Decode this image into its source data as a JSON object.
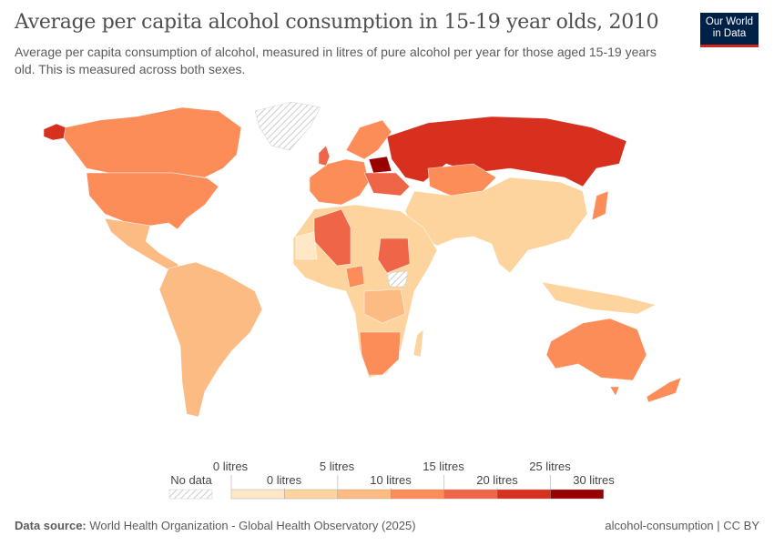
{
  "header": {
    "title": "Average per capita alcohol consumption in 15-19 year olds, 2010",
    "subtitle": "Average per capita consumption of alcohol, measured in litres of pure alcohol per year for those aged 15-19 years old. This is measured across both sexes.",
    "logo": "Our World in Data"
  },
  "legend": {
    "no_data_label": "No data",
    "bins": [
      {
        "label_top": "0 litres",
        "label_bottom": "0 litres",
        "color": "#fee8c8"
      },
      {
        "label_top": "5 litres",
        "label_bottom": "",
        "color": "#fdd49e"
      },
      {
        "label_top": "",
        "label_bottom": "10 litres",
        "color": "#fdbb84"
      },
      {
        "label_top": "15 litres",
        "label_bottom": "",
        "color": "#fc8d59"
      },
      {
        "label_top": "",
        "label_bottom": "20 litres",
        "color": "#ef6548"
      },
      {
        "label_top": "25 litres",
        "label_bottom": "",
        "color": "#d7301f"
      },
      {
        "label_top": "",
        "label_bottom": "30 litres",
        "color": "#990000"
      }
    ],
    "ticks_top": [
      "0 litres",
      "5 litres",
      "15 litres",
      "25 litres"
    ],
    "ticks_bottom": [
      "0 litres",
      "10 litres",
      "20 litres",
      "30 litres"
    ]
  },
  "footer": {
    "source_label": "Data source:",
    "source": "World Health Organization - Global Health Observatory (2025)",
    "license": "alcohol-consumption | CC BY"
  }
}
